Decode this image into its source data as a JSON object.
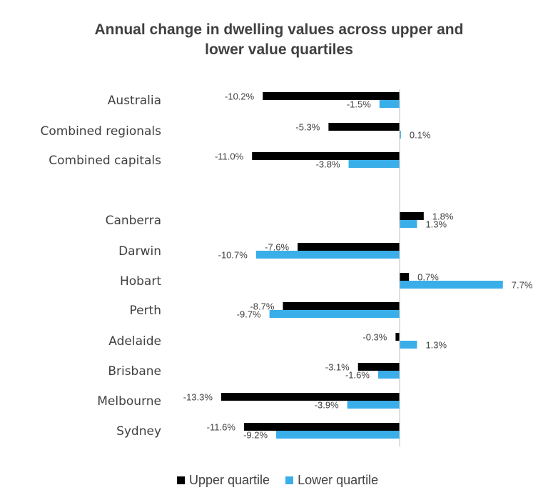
{
  "chart_data": {
    "type": "bar",
    "orientation": "horizontal",
    "title_line1": "Annual change in dwelling values across upper and",
    "title_line2": "lower value quartiles",
    "categories": [
      "Australia",
      "Combined regionals",
      "Combined capitals",
      "Canberra",
      "Darwin",
      "Hobart",
      "Perth",
      "Adelaide",
      "Brisbane",
      "Melbourne",
      "Sydney"
    ],
    "series": [
      {
        "name": "Upper quartile",
        "color": "#000000",
        "values": [
          -10.2,
          -5.3,
          -11.0,
          1.8,
          -7.6,
          0.7,
          -8.7,
          -0.3,
          -3.1,
          -13.3,
          -11.6
        ],
        "labels": [
          "-10.2%",
          "-5.3%",
          "-11.0%",
          "1.8%",
          "-7.6%",
          "0.7%",
          "-8.7%",
          "-0.3%",
          "-3.1%",
          "-13.3%",
          "-11.6%"
        ]
      },
      {
        "name": "Lower quartile",
        "color": "#3aaee8",
        "values": [
          -1.5,
          0.1,
          -3.8,
          1.3,
          -10.7,
          7.7,
          -9.7,
          1.3,
          -1.6,
          -3.9,
          -9.2
        ],
        "labels": [
          "-1.5%",
          "0.1%",
          "-3.8%",
          "1.3%",
          "-10.7%",
          "7.7%",
          "-9.7%",
          "1.3%",
          "-1.6%",
          "-3.9%",
          "-9.2%"
        ]
      }
    ],
    "legend_position": "bottom",
    "grid": false
  }
}
